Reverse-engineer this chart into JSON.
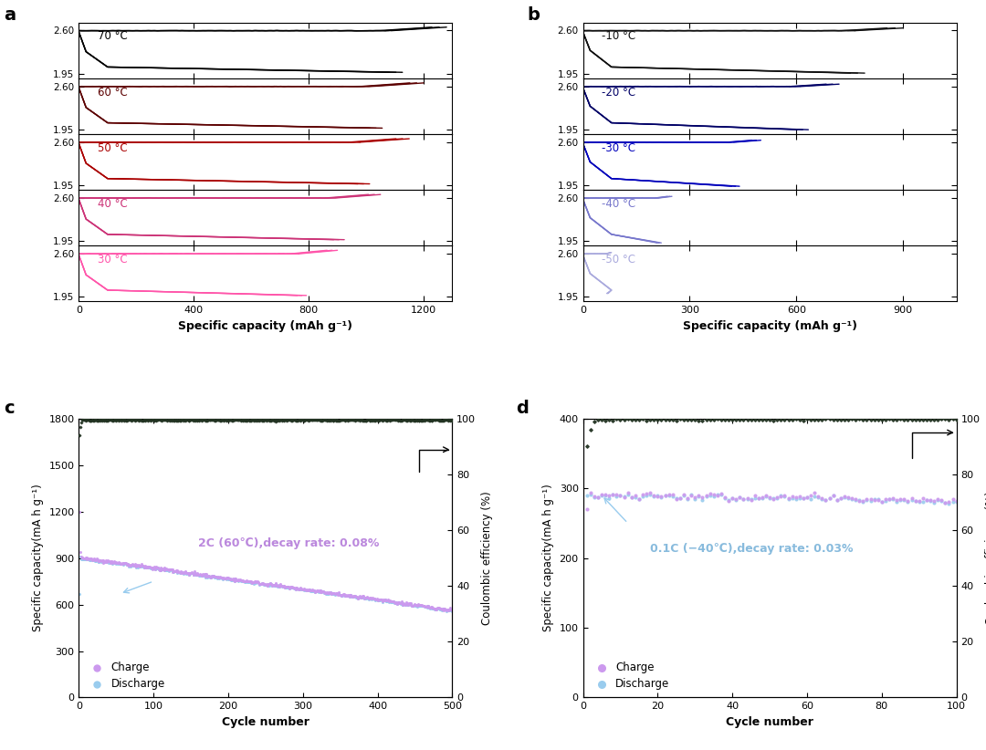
{
  "panel_a": {
    "label": "a",
    "temperatures": [
      "70 °C",
      "60 °C",
      "50 °C",
      "40 °C",
      "30 °C"
    ],
    "colors": [
      "#000000",
      "#5C0000",
      "#AA0000",
      "#CC3377",
      "#FF55AA"
    ],
    "xlim": [
      0,
      1300
    ],
    "xticks": [
      0,
      400,
      800,
      1200
    ],
    "ylim": [
      1.88,
      2.72
    ],
    "yticks": [
      1.95,
      2.6
    ],
    "xlabel": "Specific capacity (mAh g⁻¹)"
  },
  "panel_b": {
    "label": "b",
    "temperatures": [
      "-10 °C",
      "-20 °C",
      "-30 °C",
      "-40 °C",
      "-50 °C"
    ],
    "colors": [
      "#111111",
      "#000066",
      "#0000BB",
      "#7777CC",
      "#AAAADD"
    ],
    "xlim": [
      0,
      1050
    ],
    "xticks": [
      0,
      300,
      600,
      900
    ],
    "ylim": [
      1.88,
      2.72
    ],
    "yticks": [
      1.95,
      2.6
    ],
    "xlabel": "Specific capacity (mAh g⁻¹)"
  },
  "panel_c": {
    "label": "c",
    "xlim": [
      0,
      500
    ],
    "ylim": [
      0,
      1800
    ],
    "ylim2": [
      0,
      100
    ],
    "xticks": [
      0,
      100,
      200,
      300,
      400,
      500
    ],
    "yticks": [
      0,
      300,
      600,
      900,
      1200,
      1500,
      1800
    ],
    "yticks2": [
      0,
      20,
      40,
      60,
      80,
      100
    ],
    "xlabel": "Cycle number",
    "ylabel": "Specific capacity(mA h g⁻¹)",
    "ylabel2": "Coulombic efficiency (%)",
    "annotation": "2C (60℃),decay rate: 0.08%",
    "annotation_color": "#BB88DD",
    "charge_color": "#CC99EE",
    "discharge_color": "#99CCEE",
    "ce_color": "#223322"
  },
  "panel_d": {
    "label": "d",
    "xlim": [
      0,
      100
    ],
    "ylim": [
      0,
      400
    ],
    "ylim2": [
      0,
      100
    ],
    "xticks": [
      0,
      20,
      40,
      60,
      80,
      100
    ],
    "yticks": [
      0,
      100,
      200,
      300,
      400
    ],
    "yticks2": [
      0,
      20,
      40,
      60,
      80,
      100
    ],
    "xlabel": "Cycle number",
    "ylabel": "Specific capacity(mA h g⁻¹)",
    "ylabel2": "Coulombic efficiency (%)",
    "annotation": "0.1C (−40℃),decay rate: 0.03%",
    "annotation_color": "#88BBDD",
    "charge_color": "#CC99EE",
    "discharge_color": "#99CCEE",
    "ce_color": "#223322"
  }
}
